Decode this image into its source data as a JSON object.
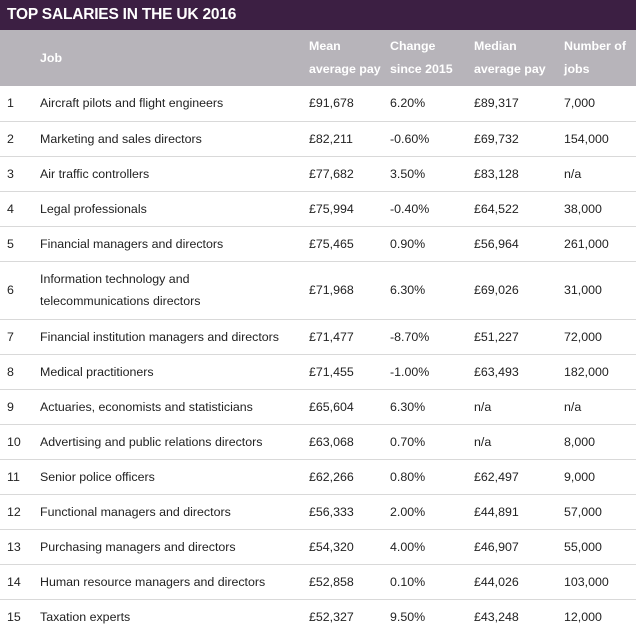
{
  "title": "TOP SALARIES IN THE UK 2016",
  "colors": {
    "title_bg": "#3c1f43",
    "header_bg": "#b7b4ba",
    "row_border": "#d9d9d9"
  },
  "headers": {
    "rank": "",
    "job": "Job",
    "mean_1": "Mean",
    "mean_2": "average pay",
    "change_1": "Change",
    "change_2": "since 2015",
    "median_1": "Median",
    "median_2": "average pay",
    "jobs_1": "Number of",
    "jobs_2": "jobs"
  },
  "rows": [
    {
      "rank": "1",
      "job": "Aircraft pilots and flight engineers",
      "mean": "£91,678",
      "change": "6.20%",
      "median": "£89,317",
      "jobs": "7,000"
    },
    {
      "rank": "2",
      "job": "Marketing and sales directors",
      "mean": "£82,211",
      "change": "-0.60%",
      "median": "£69,732",
      "jobs": "154,000"
    },
    {
      "rank": "3",
      "job": "Air traffic controllers",
      "mean": "£77,682",
      "change": "3.50%",
      "median": "£83,128",
      "jobs": "n/a"
    },
    {
      "rank": "4",
      "job": "Legal professionals",
      "mean": "£75,994",
      "change": "-0.40%",
      "median": "£64,522",
      "jobs": "38,000"
    },
    {
      "rank": "5",
      "job": "Financial managers and directors",
      "mean": "£75,465",
      "change": "0.90%",
      "median": "£56,964",
      "jobs": "261,000"
    },
    {
      "rank": "6",
      "job": "Information technology and telecommunications directors",
      "mean": "£71,968",
      "change": "6.30%",
      "median": "£69,026",
      "jobs": "31,000"
    },
    {
      "rank": "7",
      "job": "Financial institution managers and directors",
      "mean": "£71,477",
      "change": "-8.70%",
      "median": "£51,227",
      "jobs": "72,000"
    },
    {
      "rank": "8",
      "job": "Medical practitioners",
      "mean": "£71,455",
      "change": "-1.00%",
      "median": "£63,493",
      "jobs": "182,000"
    },
    {
      "rank": "9",
      "job": "Actuaries, economists and statisticians",
      "mean": "£65,604",
      "change": "6.30%",
      "median": "n/a",
      "jobs": "n/a"
    },
    {
      "rank": "10",
      "job": "Advertising and public relations directors",
      "mean": "£63,068",
      "change": "0.70%",
      "median": "n/a",
      "jobs": "8,000"
    },
    {
      "rank": "11",
      "job": "Senior police officers",
      "mean": "£62,266",
      "change": "0.80%",
      "median": "£62,497",
      "jobs": "9,000"
    },
    {
      "rank": "12",
      "job": "Functional managers and directors",
      "mean": "£56,333",
      "change": "2.00%",
      "median": "£44,891",
      "jobs": "57,000"
    },
    {
      "rank": "13",
      "job": "Purchasing managers and directors",
      "mean": "£54,320",
      "change": "4.00%",
      "median": "£46,907",
      "jobs": "55,000"
    },
    {
      "rank": "14",
      "job": "Human resource managers and directors",
      "mean": "£52,858",
      "change": "0.10%",
      "median": "£44,026",
      "jobs": "103,000"
    },
    {
      "rank": "15",
      "job": "Taxation experts",
      "mean": "£52,327",
      "change": "9.50%",
      "median": "£43,248",
      "jobs": "12,000"
    }
  ]
}
